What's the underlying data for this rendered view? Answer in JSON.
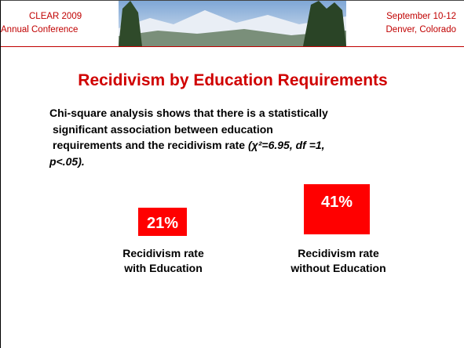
{
  "header": {
    "left": [
      "CLEAR 2009",
      "Annual Conference"
    ],
    "right": [
      "September 10-12",
      "Denver, Colorado"
    ]
  },
  "title": "Recidivism by Education Requirements",
  "body": {
    "lines": [
      "Chi-square analysis shows that there is a statistically",
      "significant association between education",
      "requirements and the recidivism rate "
    ],
    "italic": [
      "(χ²=6.95, df =1,",
      "p<.05)."
    ]
  },
  "stats": [
    {
      "value": "21%",
      "caption": [
        "Recidivism rate",
        "with Education"
      ]
    },
    {
      "value": "41%",
      "caption": [
        "Recidivism rate",
        "without Education"
      ]
    }
  ]
}
